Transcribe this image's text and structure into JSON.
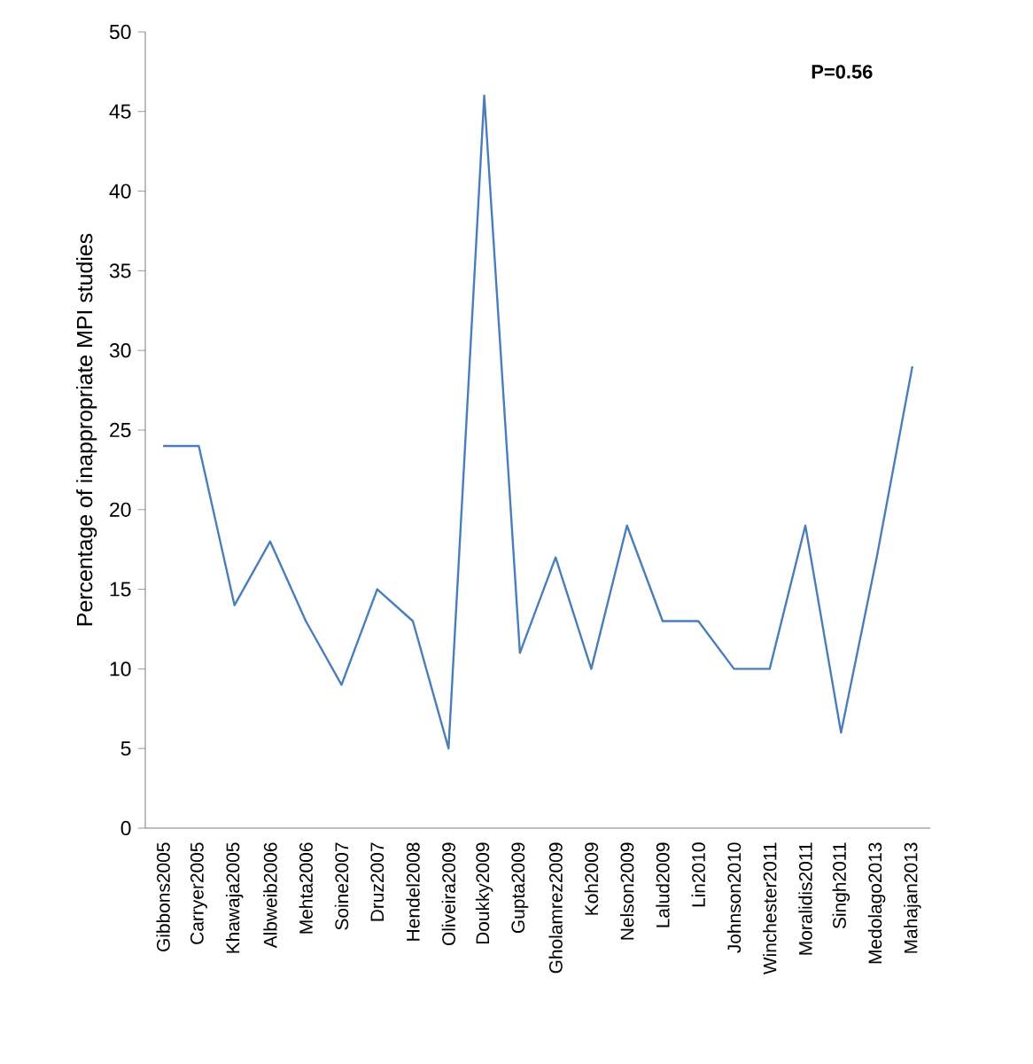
{
  "chart_data": {
    "type": "line",
    "ylabel": "Percentage of inappropriate MPI studies",
    "categories": [
      "Gibbons2005",
      "Carryer2005",
      "Khawaja2005",
      "Albweib2006",
      "Mehta2006",
      "Soine2007",
      "Druz2007",
      "Hendel2008",
      "Oliveira2009",
      "Doukky2009",
      "Gupta2009",
      "Gholamrez2009",
      "Koh2009",
      "Nelson2009",
      "Lalud2009",
      "Lin2010",
      "Johnson2010",
      "Winchester2011",
      "Moralidis2011",
      "Singh2011",
      "Medolago2013",
      "Mahajan2013"
    ],
    "values": [
      24,
      24,
      14,
      18,
      13,
      9,
      15,
      13,
      5,
      46,
      11,
      17,
      10,
      19,
      13,
      13,
      10,
      10,
      19,
      6,
      17,
      29
    ],
    "color": "#4a7ebb",
    "marker": "none",
    "ylim": [
      0,
      50
    ],
    "yticks": [
      0,
      5,
      10,
      15,
      20,
      25,
      30,
      35,
      40,
      45,
      50
    ],
    "annotations": [
      "P=0.56"
    ]
  }
}
